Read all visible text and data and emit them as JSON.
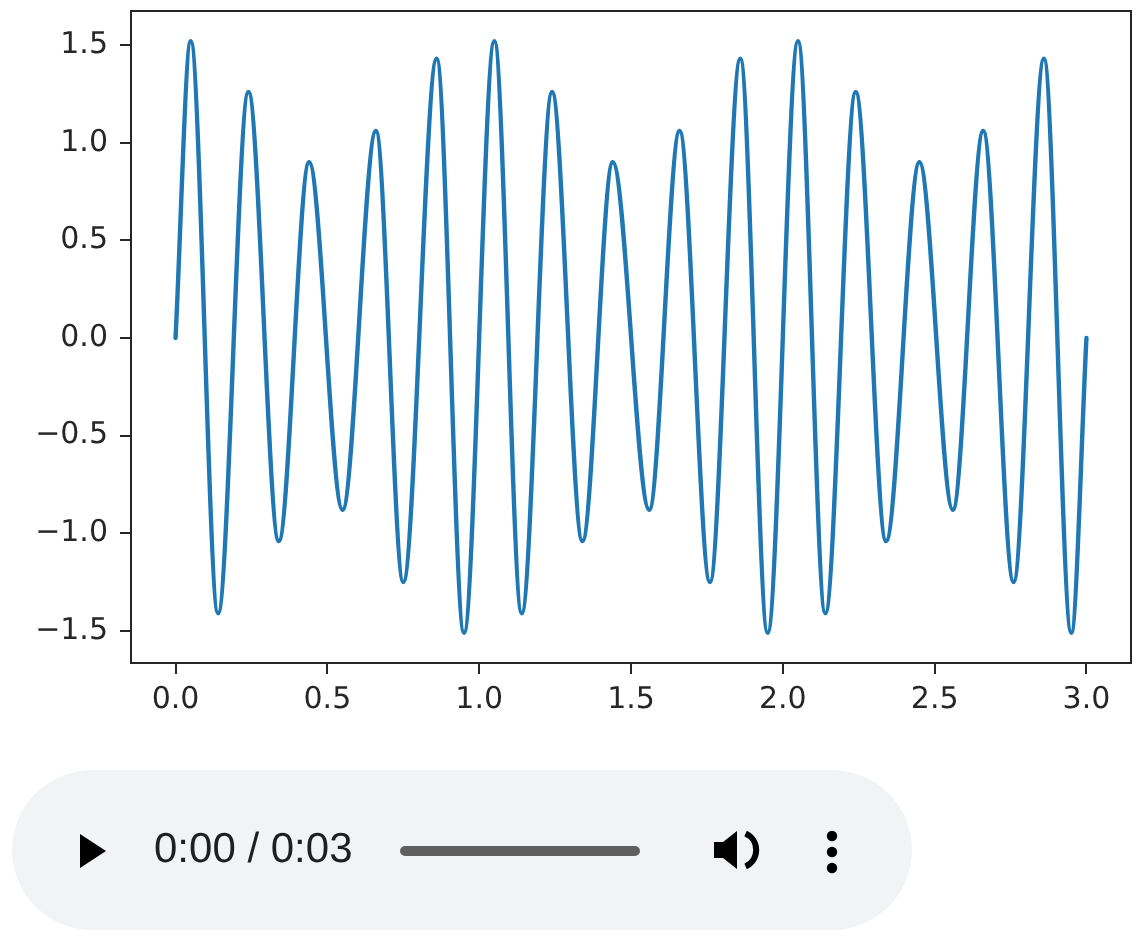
{
  "chart_data": {
    "type": "line",
    "x": [
      0,
      0.05,
      0.14,
      0.24,
      0.34,
      0.44,
      0.55,
      0.66,
      0.75,
      0.86,
      0.95,
      1.05,
      1.14,
      1.24,
      1.34,
      1.44,
      1.56,
      1.66,
      1.76,
      1.86,
      1.95,
      2.05,
      2.14,
      2.24,
      2.34,
      2.45,
      2.56,
      2.66,
      2.76,
      2.86,
      2.95,
      3.0
    ],
    "series": [
      {
        "color": "#1f77b4",
        "values": [
          0,
          1.52,
          -1.41,
          1.26,
          -1.04,
          0.9,
          -0.88,
          1.06,
          -1.25,
          1.43,
          -1.51,
          1.52,
          -1.41,
          1.26,
          -1.04,
          0.9,
          -0.88,
          1.06,
          -1.25,
          1.43,
          -1.51,
          1.52,
          -1.41,
          1.26,
          -1.04,
          0.9,
          -0.88,
          1.06,
          -1.25,
          1.43,
          -1.51,
          0
        ]
      }
    ],
    "xlim": [
      -0.15,
      3.15
    ],
    "ylim": [
      -1.67,
      1.68
    ],
    "xticks": [
      {
        "value": 0,
        "label": "0.0"
      },
      0.5,
      {
        "value": 1,
        "label": "1.0"
      },
      1.5,
      {
        "value": 2,
        "label": "2.0"
      },
      2.5,
      {
        "value": 3,
        "label": "3.0"
      }
    ],
    "yticks": [
      {
        "value": -1.5,
        "label": "−1.5"
      },
      {
        "value": -1,
        "label": "−1.0"
      },
      {
        "value": -0.5,
        "label": "−0.5"
      },
      {
        "value": 0,
        "label": "0.0"
      },
      0.5,
      {
        "value": 1,
        "label": "1.0"
      },
      1.5
    ],
    "marker": "none",
    "line_style": "solid",
    "annotations": [
      "0:00 / 0:03"
    ]
  }
}
